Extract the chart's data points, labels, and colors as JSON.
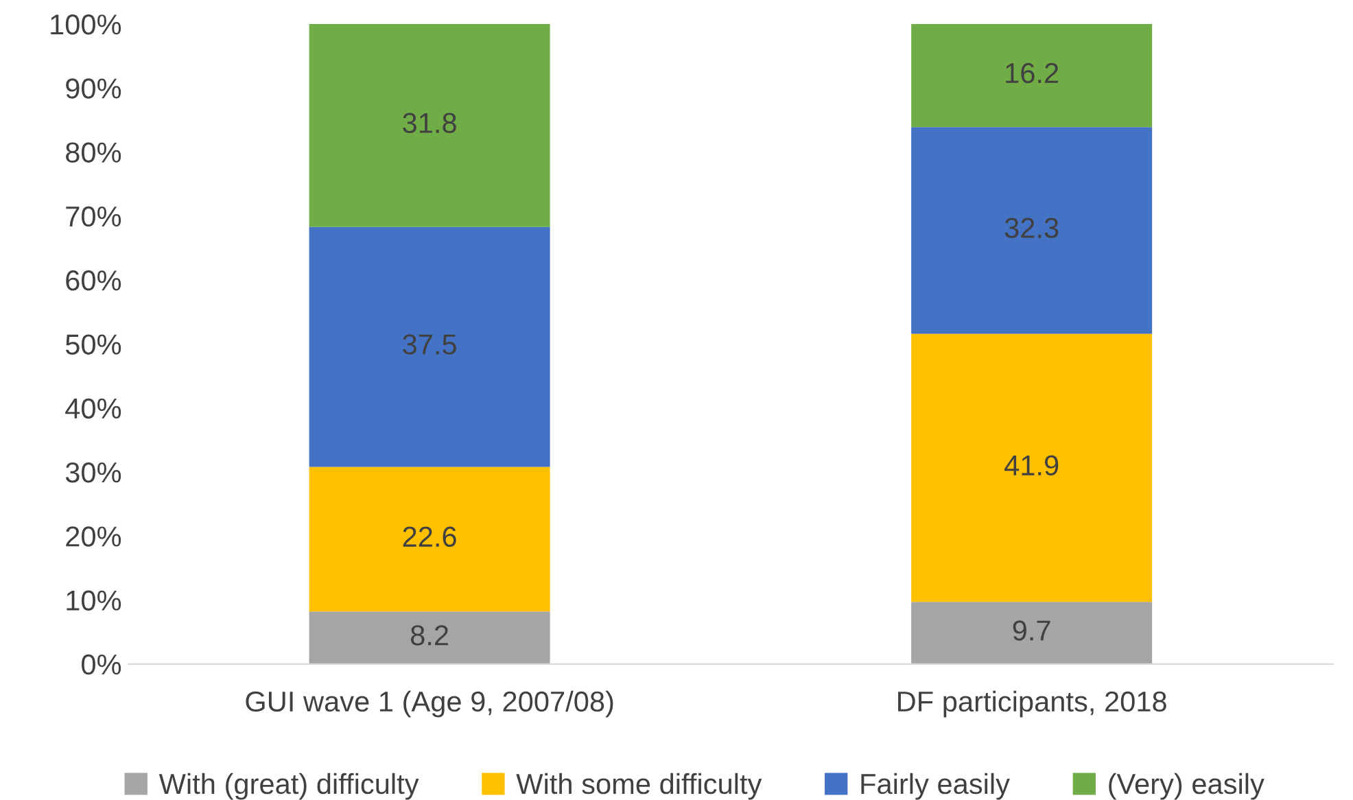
{
  "chart_data": {
    "type": "bar",
    "stacked": true,
    "categories": [
      "GUI wave 1 (Age 9, 2007/08)",
      "DF participants, 2018"
    ],
    "series": [
      {
        "name": "With (great) difficulty",
        "color": "#a5a5a5",
        "values": [
          8.2,
          9.7
        ]
      },
      {
        "name": "With some difficulty",
        "color": "#ffc000",
        "values": [
          22.6,
          41.9
        ]
      },
      {
        "name": "Fairly easily",
        "color": "#4472c4",
        "values": [
          37.5,
          32.3
        ]
      },
      {
        "name": "(Very) easily",
        "color": "#70ad47",
        "values": [
          31.8,
          16.2
        ]
      }
    ],
    "ylim": [
      0,
      100
    ],
    "yticks": [
      {
        "value": 0,
        "label": "0%"
      },
      {
        "value": 10,
        "label": "10%"
      },
      {
        "value": 20,
        "label": "20%"
      },
      {
        "value": 30,
        "label": "30%"
      },
      {
        "value": 40,
        "label": "40%"
      },
      {
        "value": 50,
        "label": "50%"
      },
      {
        "value": 60,
        "label": "60%"
      },
      {
        "value": 70,
        "label": "70%"
      },
      {
        "value": 80,
        "label": "80%"
      },
      {
        "value": 90,
        "label": "90%"
      },
      {
        "value": 100,
        "label": "100%"
      }
    ],
    "data_labels": true,
    "grid": false,
    "legend": "bottom"
  }
}
